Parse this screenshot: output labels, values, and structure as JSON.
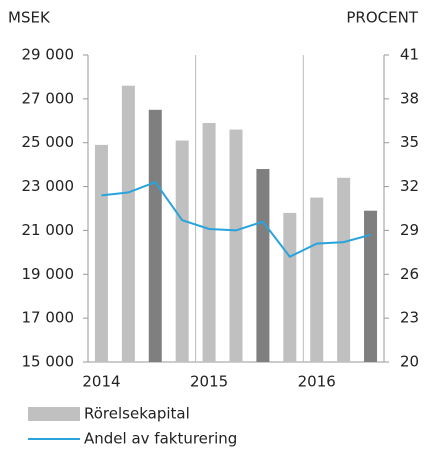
{
  "chart_data": {
    "type": "bar_line",
    "y_label": "MSEK",
    "y2_label": "PROCENT",
    "categories": [
      "2014",
      null,
      null,
      null,
      "2015",
      null,
      null,
      null,
      "2016",
      null,
      null
    ],
    "series": [
      {
        "name": "Rörelsekapital",
        "color": "#c0c0c0",
        "colors": [
          "#c0c0c0",
          "#c0c0c0",
          "#7f7f7f",
          "#c0c0c0",
          "#c0c0c0",
          "#c0c0c0",
          "#7f7f7f",
          "#c0c0c0",
          "#c0c0c0",
          "#c0c0c0",
          "#7f7f7f"
        ],
        "values": [
          24900,
          27600,
          26500,
          25100,
          25900,
          25600,
          23800,
          21800,
          22500,
          23400,
          21900
        ]
      },
      {
        "name": "Andel av fakturering",
        "color": "#29a3dc",
        "axis": "y2",
        "values": [
          31.4,
          31.6,
          32.3,
          29.7,
          29.1,
          29.0,
          29.6,
          27.2,
          28.1,
          28.2,
          28.7
        ]
      }
    ],
    "ylim": [
      15000,
      29000
    ],
    "yticks": [
      {
        "value": 15000,
        "label": "15 000"
      },
      {
        "value": 17000,
        "label": "17 000"
      },
      {
        "value": 19000,
        "label": "19 000"
      },
      {
        "value": 21000,
        "label": "21 000"
      },
      {
        "value": 23000,
        "label": "23 000"
      },
      {
        "value": 25000,
        "label": "25 000"
      },
      {
        "value": 27000,
        "label": "27 000"
      },
      {
        "value": 29000,
        "label": "29 000"
      }
    ],
    "y2lim": [
      20,
      41
    ],
    "y2ticks": [
      20,
      23,
      26,
      29,
      32,
      35,
      38,
      41
    ]
  }
}
